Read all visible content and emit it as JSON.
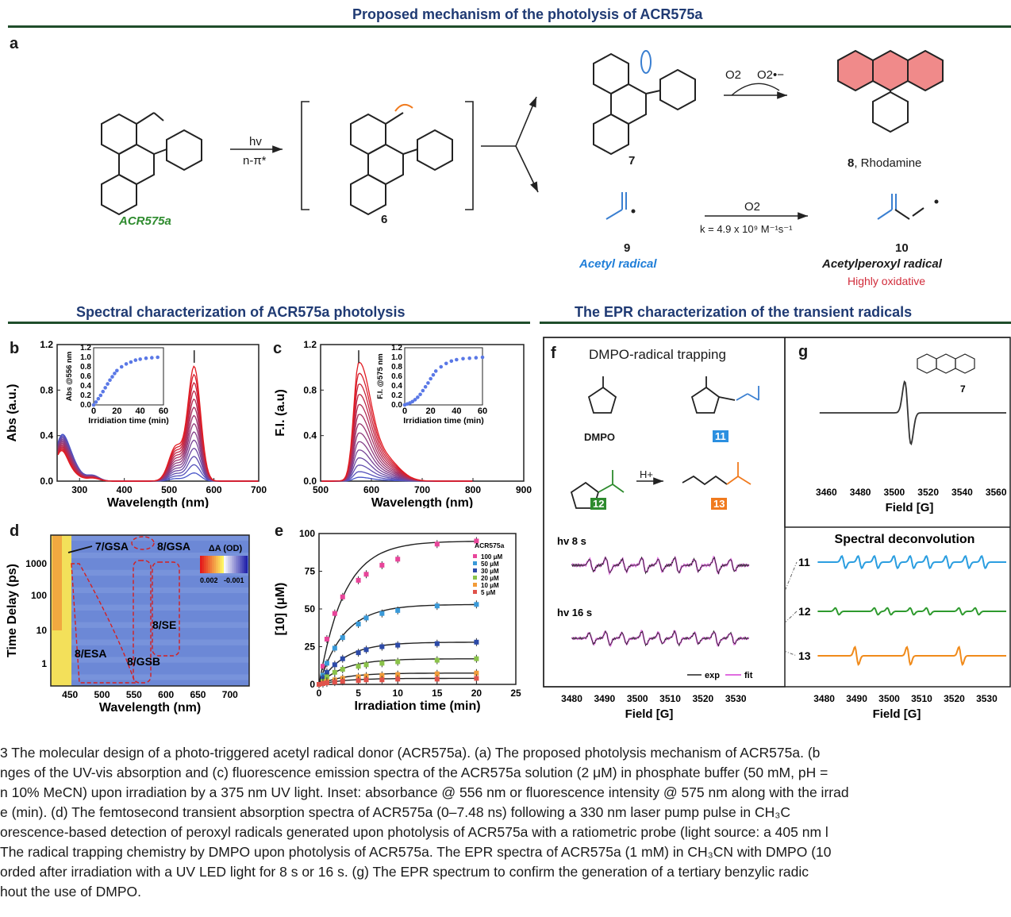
{
  "headers": {
    "mechanism": "Proposed mechanism of the photolysis of ACR575a",
    "spectral": "Spectral characterization of ACR575a photolysis",
    "epr": "The EPR characterization of the transient radicals"
  },
  "panel_a": {
    "label": "a",
    "reactant": "ACR575a",
    "arrow_top": "hv",
    "arrow_bottom": "n-π*",
    "intermediate": "6",
    "compound7": "7",
    "o2_label": "O2",
    "superoxide_label": "O2•−",
    "rhodamine_num": "8",
    "rhodamine_name": ", Rhodamine",
    "acetyl_num": "9",
    "acetyl_name": "Acetyl radical",
    "rate_top": "O2",
    "rate_bottom": "k = 4.9 x 10⁹ M⁻¹s⁻¹",
    "peroxyl_num": "10",
    "peroxyl_name": "Acetylperoxyl radical",
    "peroxyl_note": "Highly oxidative"
  },
  "chart_data": [
    {
      "panel": "b",
      "type": "line",
      "xlabel": "Wavelength (nm)",
      "ylabel": "Abs (a.u.)",
      "xlim": [
        250,
        700
      ],
      "ylim": [
        0,
        1.2
      ],
      "xticks": [
        300,
        400,
        500,
        600,
        700
      ],
      "yticks": [
        0.0,
        0.4,
        0.8,
        1.2
      ],
      "peak_nm": 556,
      "peak_final": 1.0,
      "inset": {
        "xlabel": "Irridiation time (min)",
        "ylabel": "Abs @556 nm",
        "xticks": [
          0,
          20,
          40,
          60
        ],
        "yticks": [
          0.0,
          0.2,
          0.4,
          0.6,
          0.8,
          1.0,
          1.2
        ],
        "x": [
          0,
          2,
          4,
          6,
          8,
          10,
          12,
          14,
          16,
          18,
          20,
          24,
          28,
          32,
          36,
          40,
          45,
          50,
          55
        ],
        "y": [
          0.0,
          0.06,
          0.13,
          0.2,
          0.28,
          0.36,
          0.44,
          0.52,
          0.59,
          0.66,
          0.72,
          0.8,
          0.86,
          0.9,
          0.94,
          0.96,
          0.98,
          0.99,
          1.0
        ]
      }
    },
    {
      "panel": "c",
      "type": "line",
      "xlabel": "Wavelength (nm)",
      "ylabel": "F.I. (a.u)",
      "xlim": [
        500,
        900
      ],
      "ylim": [
        0,
        1.2
      ],
      "xticks": [
        500,
        600,
        700,
        800,
        900
      ],
      "yticks": [
        0.0,
        0.4,
        0.8,
        1.2
      ],
      "peak_nm": 575,
      "peak_final": 1.0,
      "inset": {
        "xlabel": "Irridiation time (min)",
        "ylabel": "F.I. @575 nm",
        "xticks": [
          0,
          20,
          40,
          60
        ],
        "yticks": [
          0.0,
          0.2,
          0.4,
          0.6,
          0.8,
          1.0,
          1.2
        ],
        "x": [
          0,
          2,
          4,
          6,
          8,
          10,
          12,
          14,
          16,
          18,
          20,
          22,
          24,
          28,
          32,
          36,
          40,
          45,
          50,
          55,
          60
        ],
        "y": [
          0.0,
          0.02,
          0.04,
          0.07,
          0.11,
          0.16,
          0.22,
          0.3,
          0.38,
          0.46,
          0.55,
          0.63,
          0.71,
          0.8,
          0.87,
          0.92,
          0.95,
          0.97,
          0.98,
          0.99,
          1.0
        ]
      }
    },
    {
      "panel": "d",
      "type": "heatmap",
      "xlabel": "Wavelength (nm)",
      "ylabel": "Time Delay (ps)",
      "xticks": [
        450,
        500,
        550,
        600,
        650,
        700
      ],
      "yticks": [
        "1000",
        "100",
        "10",
        "1"
      ],
      "colorbar_title": "ΔA (OD)",
      "colorbar_min": "0.002",
      "colorbar_max": "-0.001",
      "annotations": [
        "7/GSA",
        "8/GSA",
        "8/SE",
        "8/ESA",
        "8/GSB"
      ]
    },
    {
      "panel": "e",
      "type": "scatter",
      "xlabel": "Irradiation time (min)",
      "ylabel": "[10] (μM)",
      "xlim": [
        0,
        25
      ],
      "ylim": [
        0,
        100
      ],
      "xticks": [
        0,
        5,
        10,
        15,
        20,
        25
      ],
      "yticks": [
        0,
        25,
        50,
        75,
        100
      ],
      "legend_title": "ACR575a",
      "x": [
        0,
        0.5,
        1,
        2,
        3,
        5,
        6,
        8,
        10,
        15,
        20
      ],
      "series": [
        {
          "name": "100 μM",
          "color": "#e8459a",
          "values": [
            0,
            12,
            30,
            47,
            58,
            69,
            73,
            79,
            83,
            93,
            95
          ]
        },
        {
          "name": "50 μM",
          "color": "#3a9ad9",
          "values": [
            0,
            6,
            14,
            24,
            31,
            40,
            44,
            47,
            49,
            52,
            53
          ]
        },
        {
          "name": "30 μM",
          "color": "#2c4aa8",
          "values": [
            0,
            4,
            8,
            13,
            17,
            21,
            23,
            25,
            26,
            27,
            28
          ]
        },
        {
          "name": "20 μM",
          "color": "#8bc34a",
          "values": [
            0,
            2,
            5,
            8,
            10,
            12,
            13,
            14,
            15,
            16,
            17
          ]
        },
        {
          "name": "10 μM",
          "color": "#f29b38",
          "values": [
            0,
            1,
            2,
            3,
            4,
            5,
            5.5,
            6,
            6.5,
            7,
            7.5
          ]
        },
        {
          "name": "5 μM",
          "color": "#e0524a",
          "values": [
            0,
            0.5,
            1,
            1.5,
            2,
            2.5,
            3,
            3,
            3.5,
            3.5,
            4
          ]
        }
      ]
    },
    {
      "panel": "f",
      "type": "line",
      "xlabel": "Field [G]",
      "xticks": [
        3480,
        3490,
        3500,
        3510,
        3520,
        3530
      ],
      "traces": [
        "hv 8 s",
        "hv 16 s"
      ],
      "legend": [
        "exp",
        "fit"
      ]
    },
    {
      "panel": "f-deconvolution",
      "type": "line",
      "title": "Spectral deconvolution",
      "xlabel": "Field [G]",
      "xticks": [
        3480,
        3490,
        3500,
        3510,
        3520,
        3530
      ],
      "traces": [
        "11",
        "12",
        "13"
      ]
    },
    {
      "panel": "g",
      "type": "line",
      "xlabel": "Field [G]",
      "xticks": [
        3460,
        3480,
        3500,
        3520,
        3540,
        3560
      ],
      "compound": "7"
    }
  ],
  "panel_f": {
    "label": "f",
    "title": "DMPO-radical trapping",
    "dmpo": "DMPO",
    "n11": "11",
    "n12": "12",
    "n13": "13",
    "hplus": "H+"
  },
  "panel_g": {
    "label": "g"
  },
  "caption": [
    "3   The molecular design of a photo-triggered acetyl radical donor (ACR575a). (a) The proposed photolysis mechanism of ACR575a. (b",
    "nges of the UV-vis absorption and (c) fluorescence emission spectra of the ACR575a solution (2 μM) in phosphate buffer (50 mM, pH =",
    "n 10% MeCN) upon irradiation by a 375 nm UV light. Inset: absorbance @ 556 nm or fluorescence intensity @ 575 nm along with the irrad",
    "e (min). (d) The femtosecond transient absorption spectra of ACR575a (0–7.48 ns) following a 330 nm laser pump pulse in CH₃C",
    "orescence-based detection of peroxyl radicals generated upon photolysis of ACR575a with a ratiometric probe (light source: a 405 nm l",
    "The radical trapping chemistry by DMPO upon photolysis of ACR575a. The EPR spectra of ACR575a (1 mM) in CH₃CN with DMPO (10",
    "orded after irradiation with a UV LED light for 8 s or 16 s. (g) The EPR spectrum to confirm the generation of a tertiary benzylic radic",
    "hout the use of DMPO."
  ]
}
